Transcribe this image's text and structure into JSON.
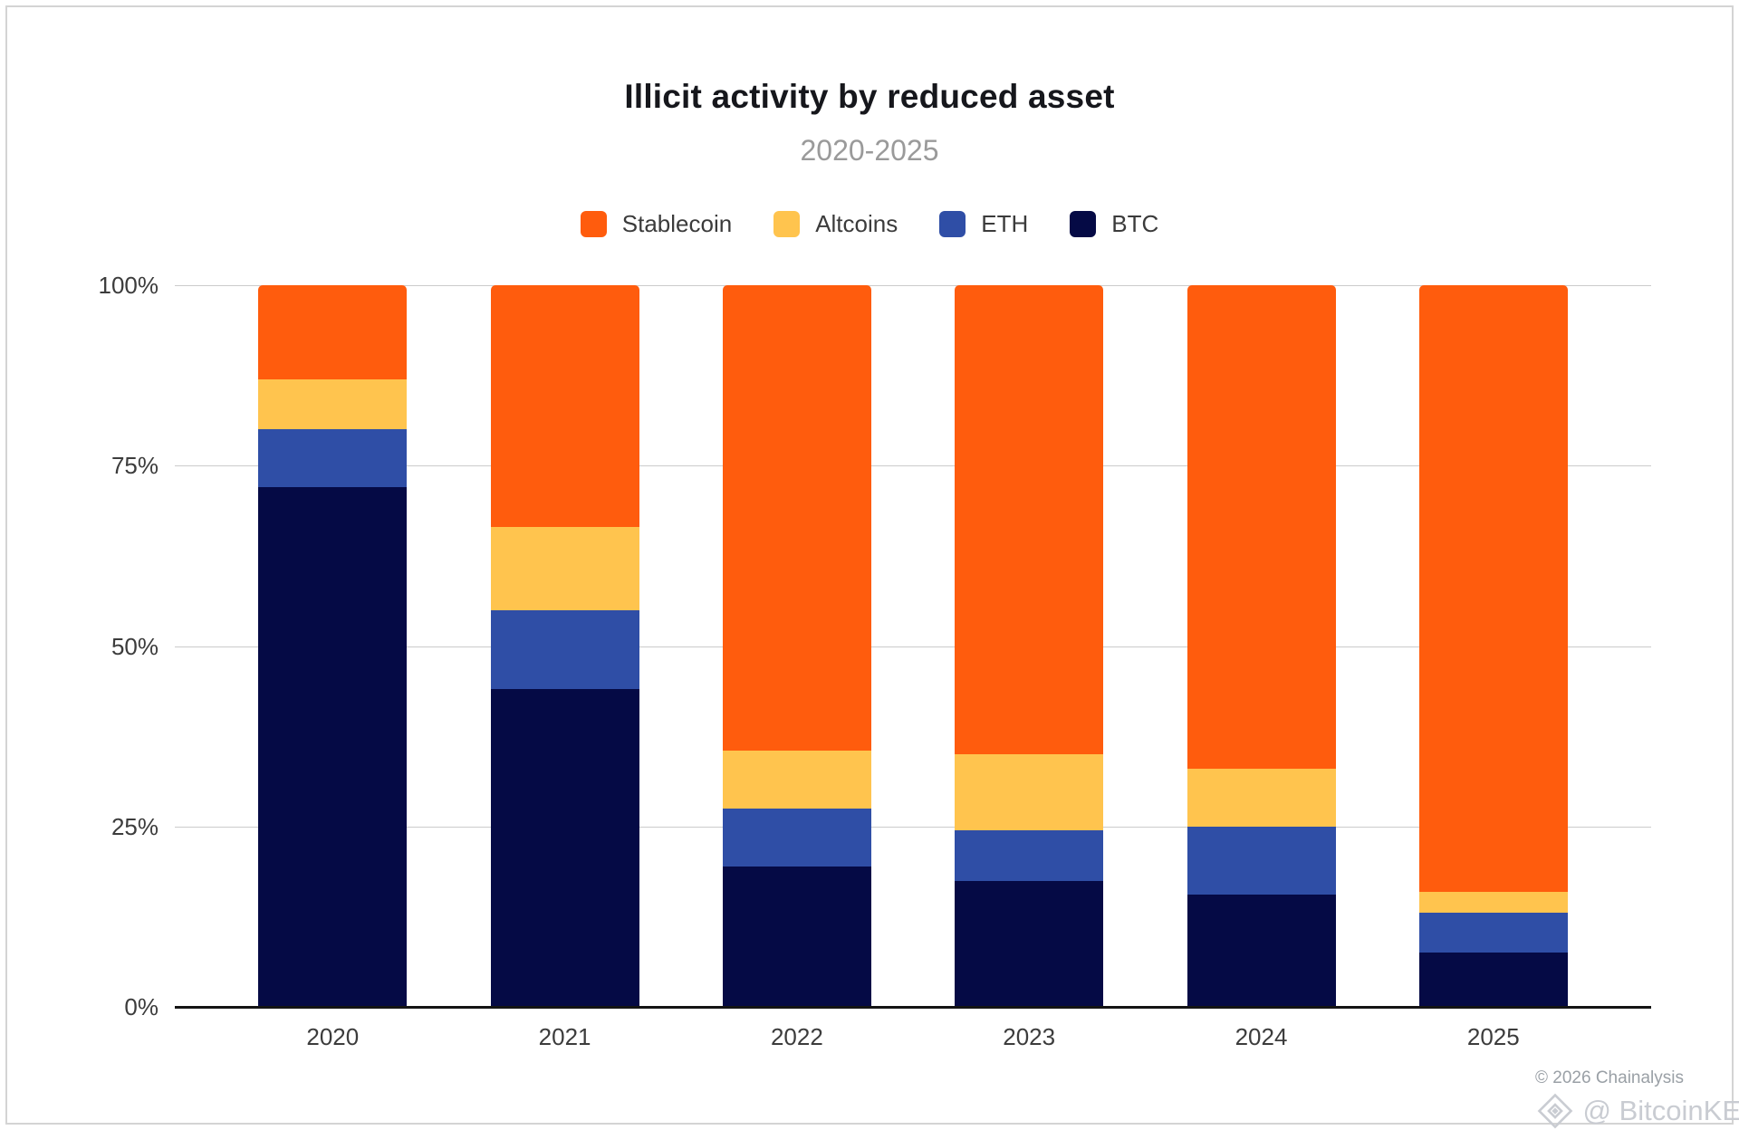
{
  "title": "Illicit activity by reduced asset",
  "subtitle": "2020-2025",
  "legend": [
    {
      "label": "Stablecoin",
      "color": "#FF5C0D"
    },
    {
      "label": "Altcoins",
      "color": "#FFC44E"
    },
    {
      "label": "ETH",
      "color": "#2F4EA6"
    },
    {
      "label": "BTC",
      "color": "#050A45"
    }
  ],
  "chart_data": {
    "type": "bar",
    "subtype": "stacked-100-percent",
    "title": "Illicit activity by reduced asset",
    "subtitle": "2020-2025",
    "categories": [
      "2020",
      "2021",
      "2022",
      "2023",
      "2024",
      "2025"
    ],
    "series": [
      {
        "name": "BTC",
        "color": "#050A45",
        "values": [
          72,
          44,
          19.5,
          17.5,
          15.5,
          7.5
        ]
      },
      {
        "name": "ETH",
        "color": "#2F4EA6",
        "values": [
          8,
          11,
          8,
          7,
          9.5,
          5.5
        ]
      },
      {
        "name": "Altcoins",
        "color": "#FFC44E",
        "values": [
          7,
          11.5,
          8,
          10.5,
          8,
          3
        ]
      },
      {
        "name": "Stablecoin",
        "color": "#FF5C0D",
        "values": [
          13,
          33.5,
          64.5,
          65,
          67,
          84
        ]
      }
    ],
    "stack_order_bottom_to_top": [
      "BTC",
      "ETH",
      "Altcoins",
      "Stablecoin"
    ],
    "yticks": [
      0,
      25,
      50,
      75,
      100
    ],
    "ytick_labels": [
      "0%",
      "25%",
      "50%",
      "75%",
      "100%"
    ],
    "ylim": [
      0,
      100
    ],
    "grid": true,
    "legend_position": "top"
  },
  "footer": {
    "copyright": "© 2026 Chainalysis",
    "watermark": "@ BitcoinKE"
  }
}
